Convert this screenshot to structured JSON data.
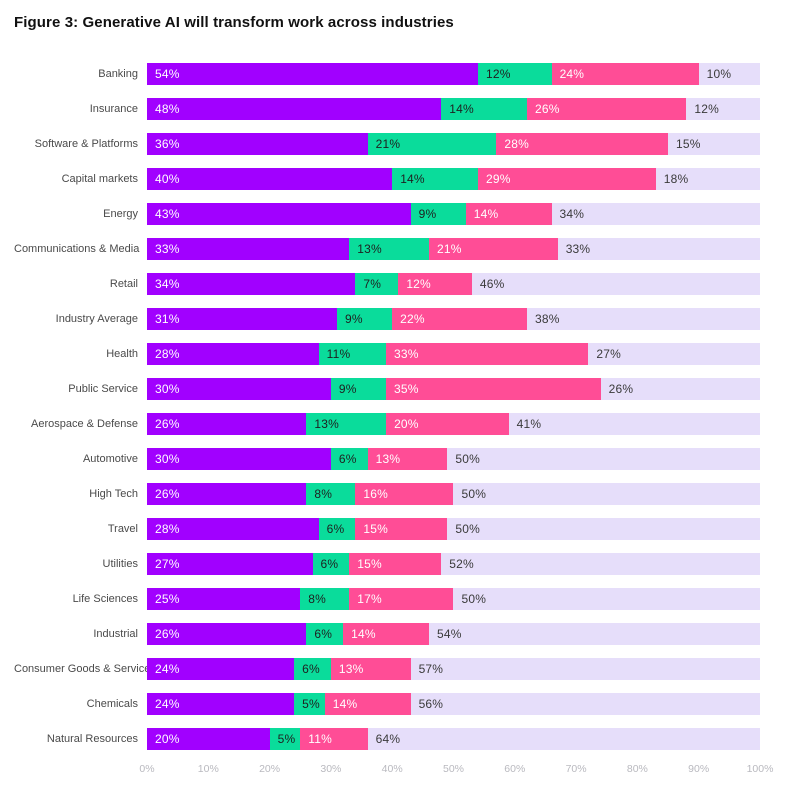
{
  "title": "Figure 3: Generative AI will transform work across industries",
  "colors": {
    "purple": "#A100FF",
    "green": "#0ADC9B",
    "pink": "#FF4D96",
    "lavender": "#E6DEFA",
    "row_label_text": "#4a4a4a",
    "axis_text": "#b9b9bf",
    "label_on_dark": "#ffffff",
    "label_on_green": "#1f1f1f",
    "label_on_lavender": "#3a3a3a"
  },
  "chart_data": {
    "type": "bar",
    "orientation": "horizontal",
    "stacked": true,
    "title": "Figure 3: Generative AI will transform work across industries",
    "value_suffix": "%",
    "xlim": [
      0,
      100
    ],
    "x_tick_labels": [
      "0%",
      "10%",
      "20%",
      "30%",
      "40%",
      "50%",
      "60%",
      "70%",
      "80%",
      "90%",
      "100%"
    ],
    "grid": false,
    "legend": false,
    "categories": [
      "Banking",
      "Insurance",
      "Software & Platforms",
      "Capital markets",
      "Energy",
      "Communications & Media",
      "Retail",
      "Industry Average",
      "Health",
      "Public Service",
      "Aerospace & Defense",
      "Automotive",
      "High Tech",
      "Travel",
      "Utilities",
      "Life Sciences",
      "Industrial",
      "Consumer Goods & Services",
      "Chemicals",
      "Natural Resources"
    ],
    "series": [
      {
        "name": "purple-segment",
        "color": "#A100FF",
        "label_color": "#ffffff",
        "values": [
          54,
          48,
          36,
          40,
          43,
          33,
          34,
          31,
          28,
          30,
          26,
          30,
          26,
          28,
          27,
          25,
          26,
          24,
          24,
          20
        ]
      },
      {
        "name": "green-segment",
        "color": "#0ADC9B",
        "label_color": "#1f1f1f",
        "values": [
          12,
          14,
          21,
          14,
          9,
          13,
          7,
          9,
          11,
          9,
          13,
          6,
          8,
          6,
          6,
          8,
          6,
          6,
          5,
          5
        ]
      },
      {
        "name": "pink-segment",
        "color": "#FF4D96",
        "label_color": "#ffffff",
        "values": [
          24,
          26,
          28,
          29,
          14,
          21,
          12,
          22,
          33,
          35,
          20,
          13,
          16,
          15,
          15,
          17,
          14,
          13,
          14,
          11
        ]
      },
      {
        "name": "lavender-segment",
        "color": "#E6DEFA",
        "label_color": "#3a3a3a",
        "values": [
          10,
          12,
          15,
          18,
          34,
          33,
          46,
          38,
          27,
          26,
          41,
          50,
          50,
          50,
          52,
          50,
          54,
          57,
          56,
          64
        ]
      }
    ]
  }
}
